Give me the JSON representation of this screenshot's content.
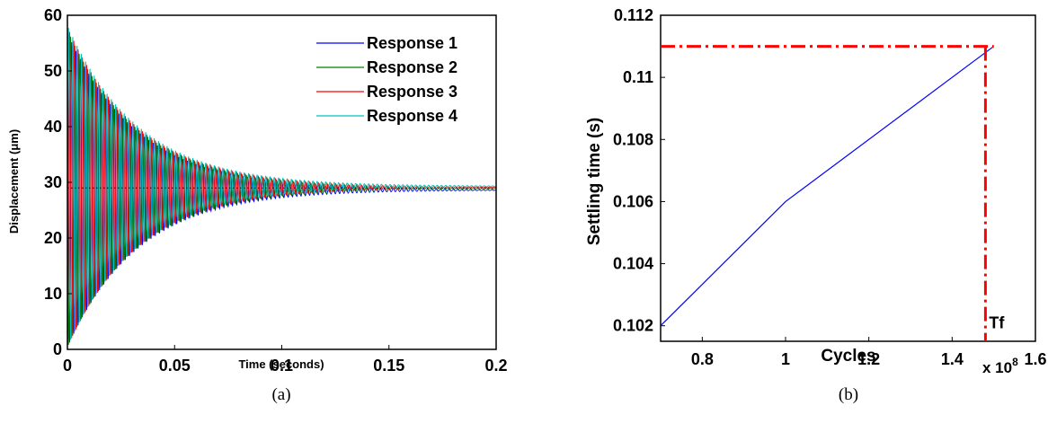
{
  "chart_data": [
    {
      "type": "line",
      "caption": "(a)",
      "xlabel": "Time (seconds)",
      "ylabel": "Displacement (μm)",
      "xlim": [
        0,
        0.2
      ],
      "ylim": [
        0,
        60
      ],
      "x_ticks": [
        "0",
        "0.05",
        "0.1",
        "0.15",
        "0.2"
      ],
      "y_ticks": [
        "0",
        "10",
        "20",
        "30",
        "40",
        "50",
        "60"
      ],
      "legend_position": "top-right",
      "reference_line": {
        "y": 29,
        "style": "dotted",
        "color": "#000000"
      },
      "oscillation": {
        "baseline": 29,
        "initial_amplitude": 28,
        "decay_rate": 30,
        "frequency_hz": 500
      },
      "series": [
        {
          "name": "Response 1",
          "color": "#0000ff",
          "baseline": 28.6,
          "initial_amplitude": 28.2,
          "phase": 0.0
        },
        {
          "name": "Response 2",
          "color": "#008000",
          "baseline": 28.9,
          "initial_amplitude": 28.6,
          "phase": 1.6
        },
        {
          "name": "Response 3",
          "color": "#ff0000",
          "baseline": 29.1,
          "initial_amplitude": 28.8,
          "phase": 3.1
        },
        {
          "name": "Response 4",
          "color": "#00c0c0",
          "baseline": 29.3,
          "initial_amplitude": 29.0,
          "phase": 4.7
        }
      ]
    },
    {
      "type": "line",
      "caption": "(b)",
      "xlabel": "Cycles",
      "ylabel": "Settling time (s)",
      "x_multiplier": "x 10",
      "x_multiplier_exp": "8",
      "xlim": [
        0.7,
        1.6
      ],
      "ylim": [
        0.1015,
        0.112
      ],
      "x_ticks": [
        0.8,
        1.0,
        1.2,
        1.4,
        1.6
      ],
      "x_tick_labels": [
        "0.8",
        "1",
        "1.2",
        "1.4",
        "1.6"
      ],
      "y_ticks": [
        0.102,
        0.104,
        0.106,
        0.108,
        0.11,
        0.112
      ],
      "y_tick_labels": [
        "0.102",
        "0.104",
        "0.106",
        "0.108",
        "0.11",
        "0.112"
      ],
      "series": [
        {
          "color": "#0000ff",
          "x": [
            0.7,
            1.0,
            1.5
          ],
          "y": [
            0.102,
            0.106,
            0.111
          ]
        }
      ],
      "threshold_h": {
        "y": 0.111,
        "x_from": 0.7,
        "x_to": 1.5,
        "color": "#ff0000",
        "style": "dash-dot"
      },
      "threshold_v": {
        "x": 1.48,
        "y_from": 0.1015,
        "y_to": 0.111,
        "color": "#ff0000",
        "style": "dash-dot"
      },
      "annotation": {
        "text": "Tf",
        "x": 1.48,
        "y": 0.1018
      }
    }
  ]
}
